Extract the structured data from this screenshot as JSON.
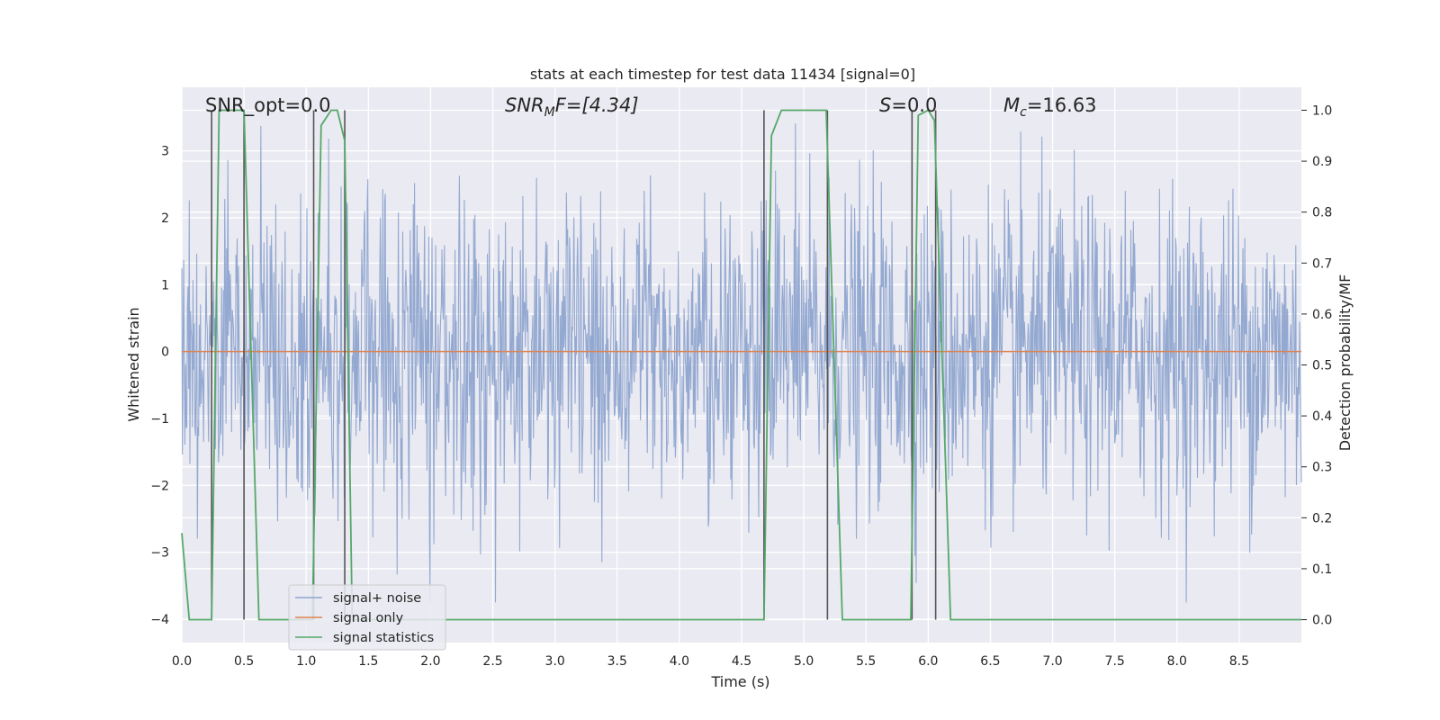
{
  "chart_data": {
    "type": "line",
    "title": "stats at each timestep for test data 11434 [signal=0]",
    "xlabel": "Time (s)",
    "ylabel_left": "Whitened strain",
    "ylabel_right": "Detection probability/MF",
    "xlim": [
      0,
      9.0
    ],
    "ylim_left": [
      -4.35,
      3.95
    ],
    "ylim_right": [
      -0.045,
      1.045
    ],
    "x_ticks": [
      "0.0",
      "0.5",
      "1.0",
      "1.5",
      "2.0",
      "2.5",
      "3.0",
      "3.5",
      "4.0",
      "4.5",
      "5.0",
      "5.5",
      "6.0",
      "6.5",
      "7.0",
      "7.5",
      "8.0",
      "8.5"
    ],
    "x_tick_values": [
      0,
      0.5,
      1.0,
      1.5,
      2.0,
      2.5,
      3.0,
      3.5,
      4.0,
      4.5,
      5.0,
      5.5,
      6.0,
      6.5,
      7.0,
      7.5,
      8.0,
      8.5
    ],
    "y_left_ticks": [
      "−4",
      "−3",
      "−2",
      "−1",
      "0",
      "1",
      "2",
      "3"
    ],
    "y_left_tick_values": [
      -4,
      -3,
      -2,
      -1,
      0,
      1,
      2,
      3
    ],
    "y_right_ticks": [
      "0.0",
      "0.1",
      "0.2",
      "0.3",
      "0.4",
      "0.5",
      "0.6",
      "0.7",
      "0.8",
      "0.9",
      "1.0"
    ],
    "y_right_tick_values": [
      0,
      0.1,
      0.2,
      0.3,
      0.4,
      0.5,
      0.6,
      0.7,
      0.8,
      0.9,
      1.0
    ],
    "grid": true,
    "legend_position": "lower-left",
    "annotations": {
      "snr_opt": "SNR_opt=0.0",
      "snr_mf_symbol": "SNR",
      "snr_mf_sub": "M",
      "snr_mf_rest": "F=[4.34]",
      "s_symbol": "S",
      "s_rest": "=0.0",
      "mc_symbol": "M",
      "mc_sub": "c",
      "mc_rest": "=16.63"
    },
    "series": [
      {
        "name": "signal+ noise",
        "color": "#8fa5cf",
        "axis": "left",
        "description_kind": "noise",
        "amplitude_sigma": 1.15,
        "samples": 1800
      },
      {
        "name": "signal only",
        "color": "#dd8452",
        "axis": "left",
        "x": [
          0,
          9.0
        ],
        "y": [
          0,
          0
        ]
      },
      {
        "name": "signal statistics",
        "color": "#55a868",
        "axis": "right",
        "x": [
          0,
          0.06,
          0.12,
          0.24,
          0.3,
          0.4,
          0.5,
          0.62,
          1.05,
          1.12,
          1.2,
          1.25,
          1.31,
          1.37,
          4.68,
          4.74,
          4.82,
          5.18,
          5.31,
          5.86,
          5.92,
          6.0,
          6.05,
          6.18,
          9.0
        ],
        "y": [
          0.17,
          0.0,
          0.0,
          0.0,
          1.0,
          1.0,
          1.0,
          0.0,
          0.0,
          0.97,
          1.0,
          1.0,
          0.94,
          0.0,
          0.0,
          0.95,
          1.0,
          1.0,
          0.0,
          0.0,
          0.99,
          1.0,
          0.98,
          0.0,
          0.0
        ]
      }
    ],
    "vertical_markers": {
      "color": "#555555",
      "x": [
        0.24,
        0.5,
        1.06,
        1.31,
        4.68,
        5.19,
        5.87,
        6.06
      ],
      "y_top_right": 1.0,
      "y_bottom_right": 0.0
    }
  },
  "colors": {
    "plot_bg": "#eaeaf2",
    "grid": "#ffffff",
    "text": "#262626",
    "legend_bg": "#eaeaf2",
    "legend_border": "#cccccc"
  }
}
